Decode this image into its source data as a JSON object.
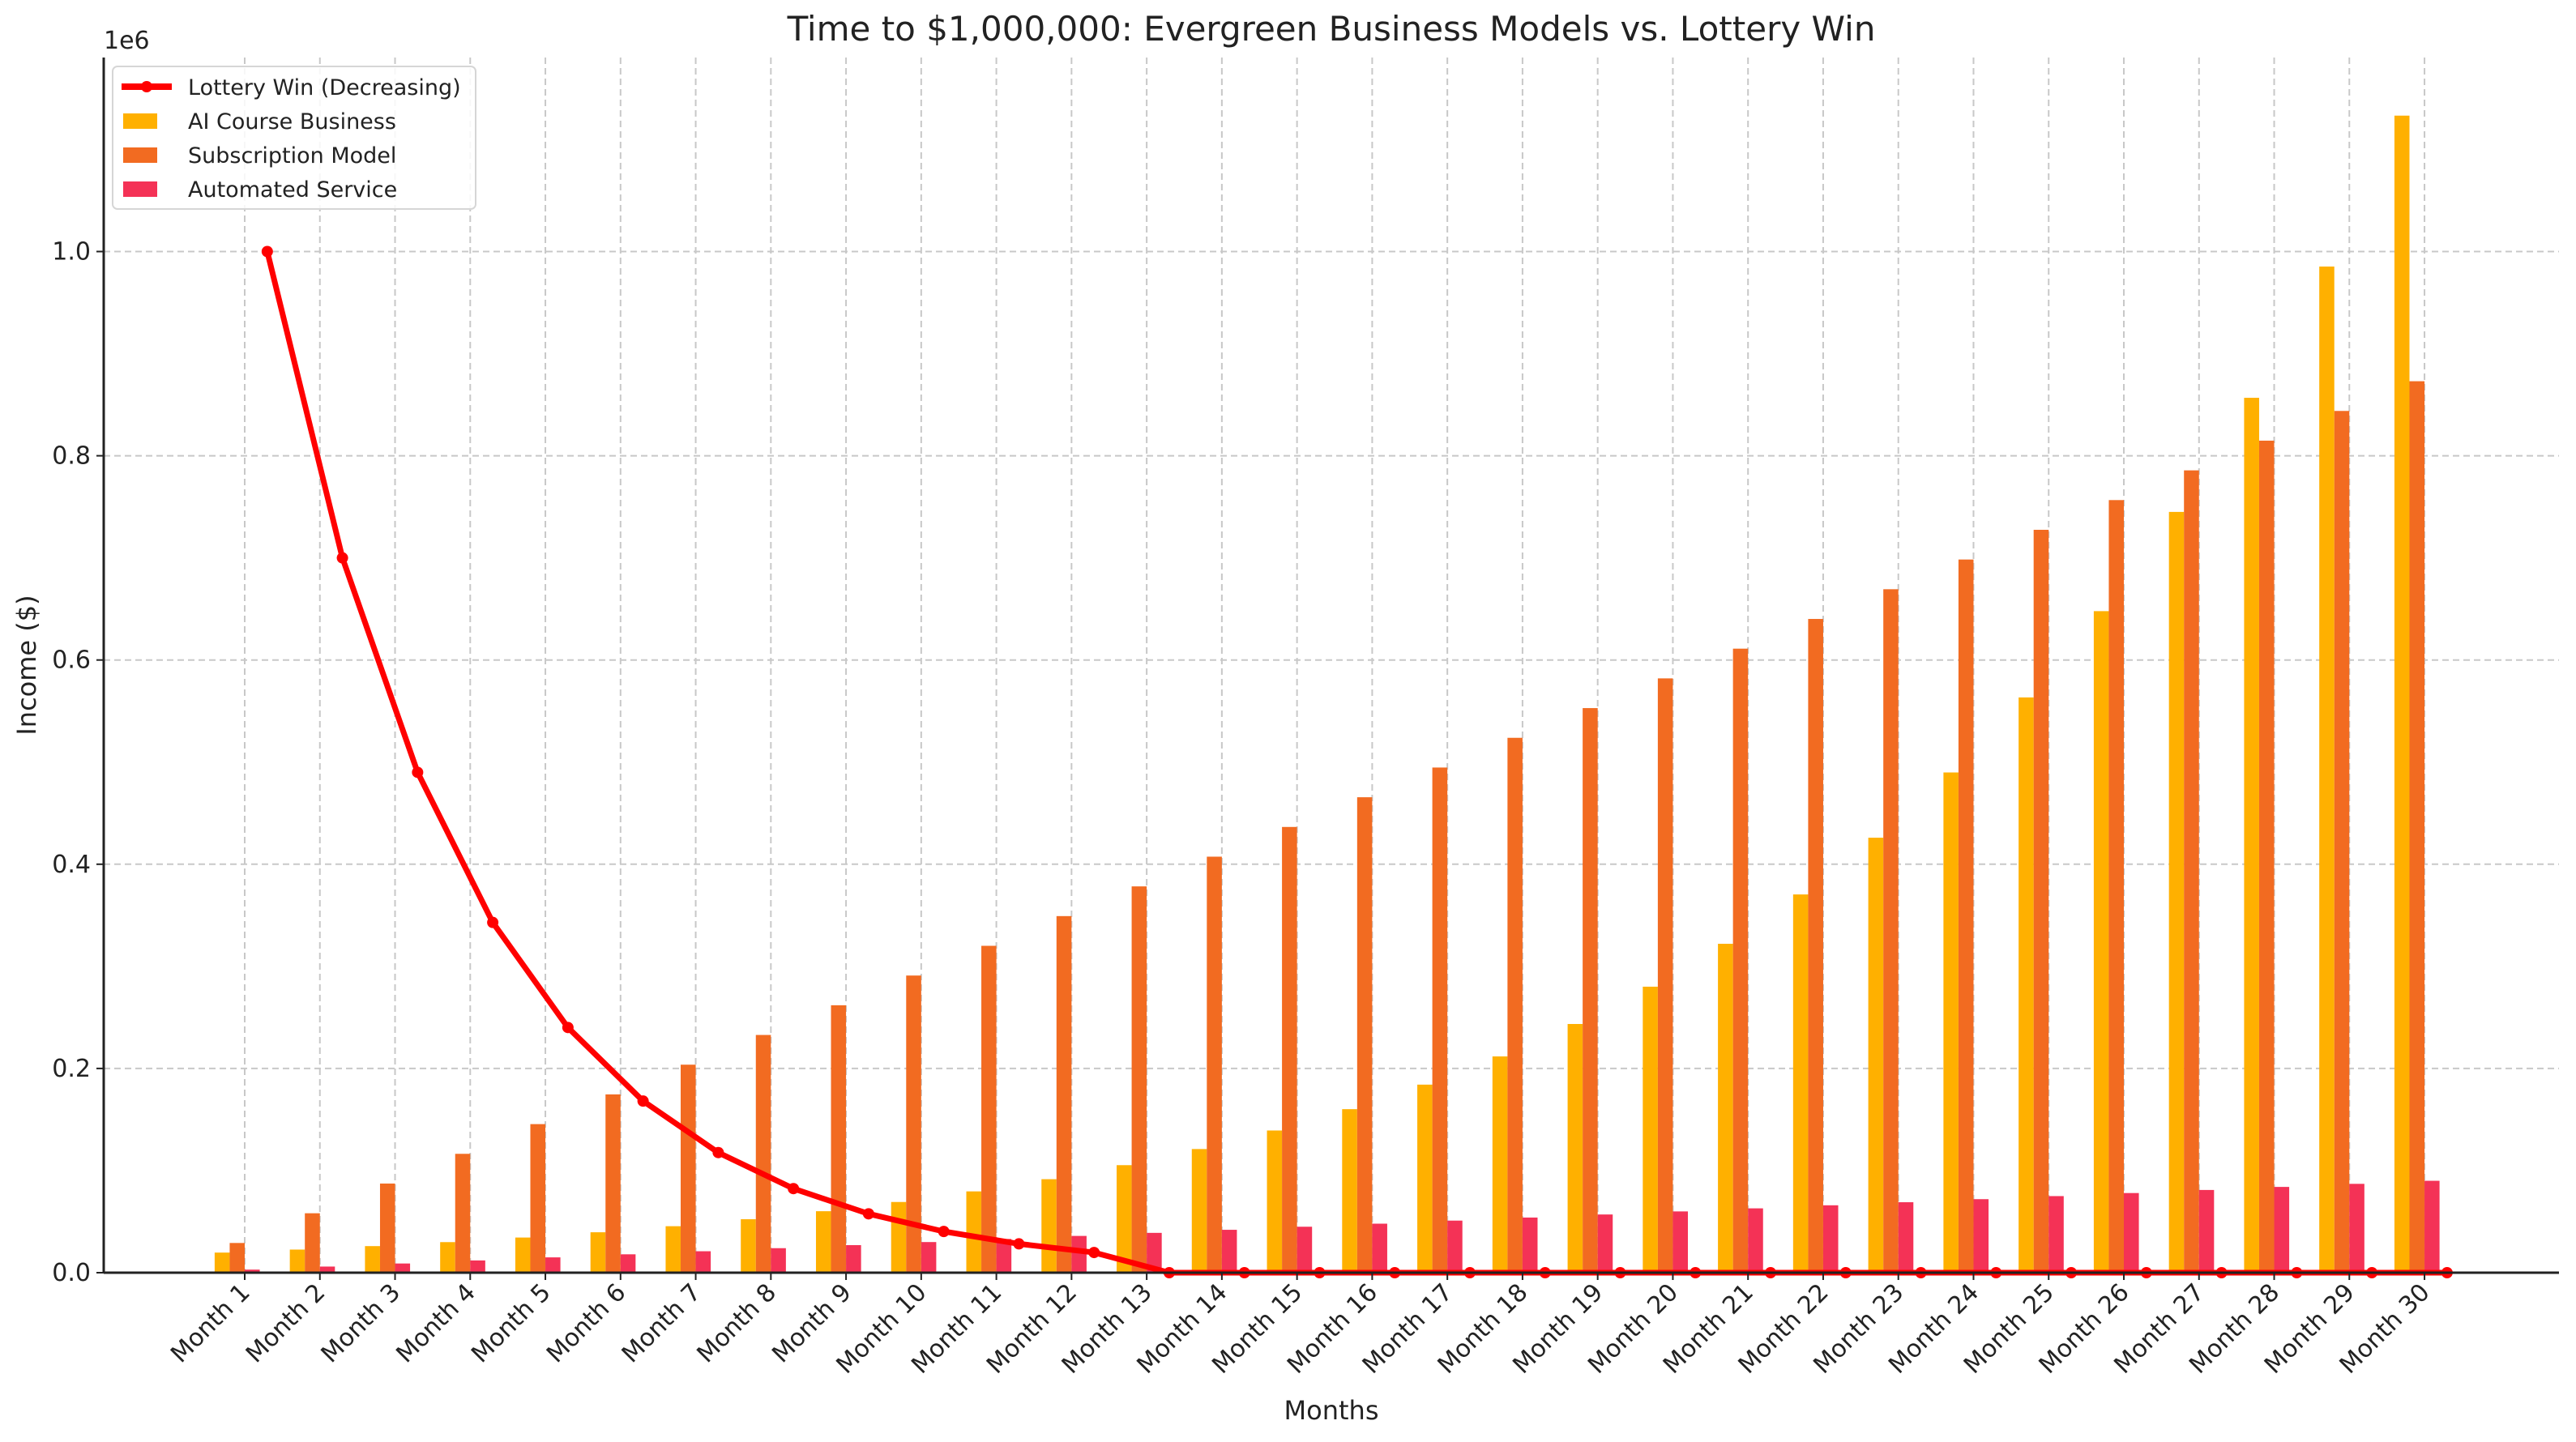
{
  "chart_data": {
    "type": "bar",
    "title": "Time to $1,000,000: Evergreen Business Models vs. Lottery Win",
    "xlabel": "Months",
    "ylabel": "Income ($)",
    "y_offset_label": "1e6",
    "ylim": [
      0,
      1190000
    ],
    "yticks": [
      0,
      200000,
      400000,
      600000,
      800000,
      1000000
    ],
    "ytick_labels": [
      "0.0",
      "0.2",
      "0.4",
      "0.6",
      "0.8",
      "1.0"
    ],
    "grid": true,
    "legend_position": "top-left",
    "categories": [
      "Month 1",
      "Month 2",
      "Month 3",
      "Month 4",
      "Month 5",
      "Month 6",
      "Month 7",
      "Month 8",
      "Month 9",
      "Month 10",
      "Month 11",
      "Month 12",
      "Month 13",
      "Month 14",
      "Month 15",
      "Month 16",
      "Month 17",
      "Month 18",
      "Month 19",
      "Month 20",
      "Month 21",
      "Month 22",
      "Month 23",
      "Month 24",
      "Month 25",
      "Month 26",
      "Month 27",
      "Month 28",
      "Month 29",
      "Month 30"
    ],
    "line_series": {
      "name": "Lottery Win (Decreasing)",
      "type": "line",
      "color": "#ff0000",
      "values": [
        1000000,
        700000,
        490000,
        343000,
        240100,
        168070,
        117649,
        82354,
        57648,
        40354,
        28248,
        19773,
        0,
        0,
        0,
        0,
        0,
        0,
        0,
        0,
        0,
        0,
        0,
        0,
        0,
        0,
        0,
        0,
        0,
        0
      ]
    },
    "series": [
      {
        "name": "AI Course Business",
        "color": "#ffb000",
        "values": [
          19680,
          22632,
          26027,
          29931,
          34420,
          39583,
          45521,
          52349,
          60202,
          69232,
          79617,
          91559,
          105293,
          121087,
          139250,
          160137,
          184158,
          211782,
          243549,
          280081,
          322093,
          370407,
          425968,
          489864,
          563343,
          647845,
          745022,
          856775,
          985291,
          1133085
        ]
      },
      {
        "name": "Subscription Model",
        "color": "#f26b21",
        "values": [
          29100,
          58200,
          87300,
          116400,
          145500,
          174600,
          203700,
          232800,
          261900,
          291000,
          320100,
          349200,
          378300,
          407400,
          436500,
          465600,
          494700,
          523800,
          552900,
          582000,
          611100,
          640200,
          669300,
          698400,
          727500,
          756600,
          785700,
          814800,
          843900,
          873000
        ]
      },
      {
        "name": "Automated Service",
        "color": "#f43256",
        "values": [
          3000,
          6000,
          9000,
          12000,
          15000,
          18000,
          21000,
          24000,
          27000,
          30000,
          33000,
          36000,
          39000,
          42000,
          45000,
          48000,
          51000,
          54000,
          57000,
          60000,
          63000,
          66000,
          69000,
          72000,
          75000,
          78000,
          81000,
          84000,
          87000,
          90000
        ]
      }
    ]
  }
}
